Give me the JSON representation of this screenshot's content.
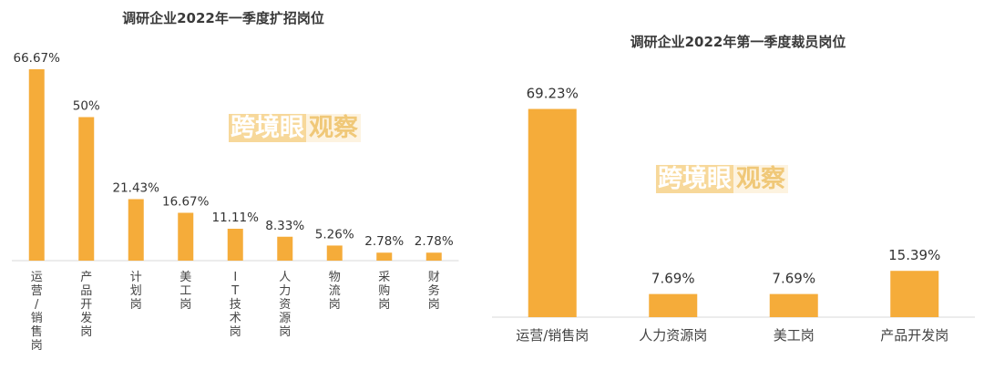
{
  "chart_data": [
    {
      "type": "bar",
      "title": "调研企业2022年一季度扩招岗位",
      "categories": [
        "运营/销售岗",
        "产品开发岗",
        "计划岗",
        "美工岗",
        "IT技术岗",
        "人力资源岗",
        "物流岗",
        "采购岗",
        "财务岗"
      ],
      "values": [
        66.67,
        50,
        21.43,
        16.67,
        11.11,
        8.33,
        5.26,
        2.78,
        2.78
      ],
      "value_labels": [
        "66.67%",
        "50%",
        "21.43%",
        "16.67%",
        "11.11%",
        "8.33%",
        "5.26%",
        "2.78%",
        "2.78%"
      ],
      "label_orientation": "vertical",
      "bar_color": "#F5AC3A",
      "grid": false,
      "watermark": [
        "跨境眼",
        "观察"
      ]
    },
    {
      "type": "bar",
      "title": "调研企业2022年第一季度裁员岗位",
      "categories": [
        "运营/销售岗",
        "人力资源岗",
        "美工岗",
        "产品开发岗"
      ],
      "values": [
        69.23,
        7.69,
        7.69,
        15.39
      ],
      "value_labels": [
        "69.23%",
        "7.69%",
        "7.69%",
        "15.39%"
      ],
      "label_orientation": "horizontal",
      "bar_color": "#F5AC3A",
      "grid": false,
      "watermark": [
        "跨境眼",
        "观察"
      ]
    }
  ]
}
